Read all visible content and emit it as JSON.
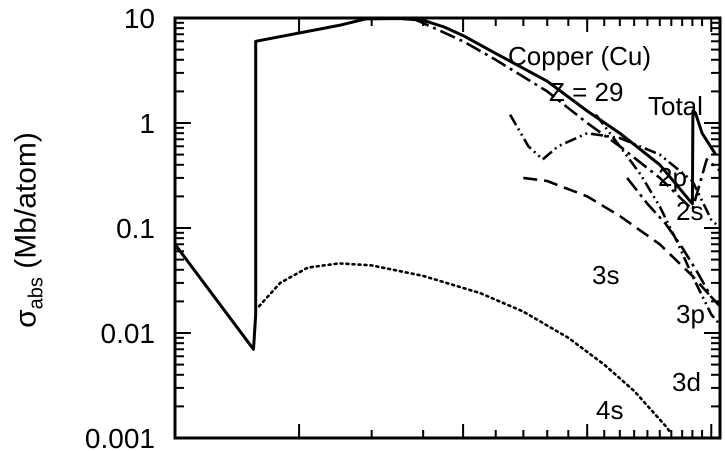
{
  "chart_data": {
    "type": "line",
    "xscale": "log",
    "yscale": "log",
    "ylim": [
      0.001,
      10
    ],
    "ylabel": {
      "symbol": "σ",
      "subscript": "abs",
      "unit": "(Mb/atom)"
    },
    "yticks": [
      {
        "value": 10,
        "label": "10"
      },
      {
        "value": 1,
        "label": "1"
      },
      {
        "value": 0.1,
        "label": "0.1"
      },
      {
        "value": 0.01,
        "label": "0.01"
      },
      {
        "value": 0.001,
        "label": "0.001"
      }
    ],
    "annotations": {
      "element": "Copper (Cu)",
      "z": "Z = 29"
    },
    "grid": false,
    "series": [
      {
        "name": "Total",
        "style": "solid",
        "x": [
          1,
          1.55,
          1.57,
          1.57,
          2.5,
          2.9,
          3.5,
          4.0,
          4.5,
          5,
          6,
          8,
          10,
          12,
          15,
          18,
          18.05,
          18.3,
          19,
          20.5
        ],
        "y": [
          0.07,
          0.007,
          0.015,
          6,
          8.5,
          9.8,
          9.9,
          9.5,
          8.2,
          6.8,
          4.6,
          2.5,
          1.3,
          0.8,
          0.4,
          0.17,
          1.3,
          1.25,
          0.8,
          0.5
        ]
      },
      {
        "name": "2p",
        "style": "dashdot",
        "x": [
          3.8,
          5,
          6,
          8,
          10,
          12,
          15,
          18,
          19.5,
          21
        ],
        "y": [
          9.8,
          6,
          4.0,
          2.0,
          1.0,
          0.6,
          0.3,
          0.15,
          0.45,
          0.35
        ]
      },
      {
        "name": "2s",
        "style": "dashdotdot",
        "x": [
          6.5,
          7.2,
          7.8,
          8.5,
          10,
          12,
          15,
          18,
          20,
          21
        ],
        "y": [
          1.2,
          0.6,
          0.45,
          0.6,
          0.8,
          0.72,
          0.5,
          0.28,
          0.12,
          0.1
        ]
      },
      {
        "name": "3s",
        "style": "dashed",
        "x": [
          7,
          8,
          10,
          12,
          15,
          18,
          20,
          21
        ],
        "y": [
          0.3,
          0.28,
          0.2,
          0.13,
          0.07,
          0.035,
          0.022,
          0.018
        ]
      },
      {
        "name": "3p",
        "style": "dashdot",
        "x": [
          12.5,
          14,
          15.5,
          17,
          18.5,
          20,
          21
        ],
        "y": [
          0.3,
          0.17,
          0.11,
          0.065,
          0.038,
          0.022,
          0.018
        ]
      },
      {
        "name": "3d",
        "style": "dashdotdot",
        "x": [
          10.5,
          12,
          13.5,
          15,
          16.5,
          18,
          20,
          21
        ],
        "y": [
          1.2,
          0.6,
          0.32,
          0.16,
          0.075,
          0.035,
          0.015,
          0.012
        ]
      },
      {
        "name": "4s",
        "style": "dotted",
        "x": [
          1.6,
          1.8,
          2.1,
          2.5,
          3.0,
          4.0,
          5.5,
          7,
          9,
          11,
          13,
          15.5,
          16
        ],
        "y": [
          0.018,
          0.03,
          0.042,
          0.046,
          0.044,
          0.035,
          0.024,
          0.016,
          0.009,
          0.005,
          0.0028,
          0.0013,
          0.0011
        ]
      }
    ],
    "series_labels": [
      "Total",
      "2p",
      "2s",
      "3s",
      "3p",
      "3d",
      "4s"
    ]
  }
}
